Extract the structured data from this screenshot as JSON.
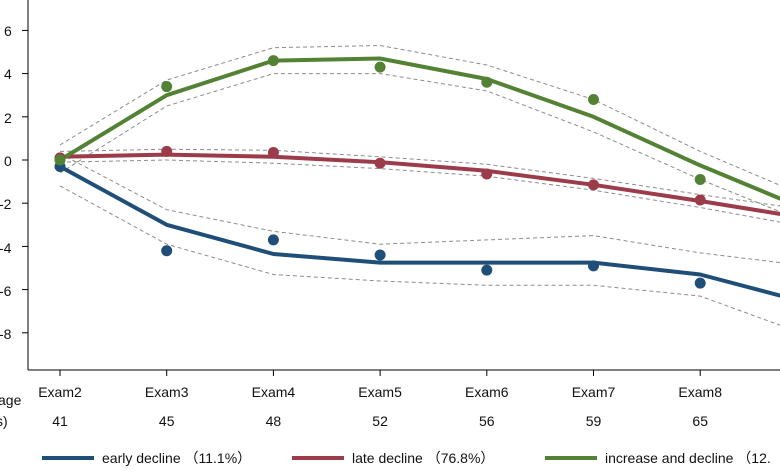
{
  "chart_data": {
    "type": "line",
    "y_ticks": [
      "6",
      "4",
      "2",
      "0",
      "-2",
      "-4",
      "-6",
      "-8"
    ],
    "ylim": [
      -9,
      7.2
    ],
    "categories": [
      "Exam2",
      "Exam3",
      "Exam4",
      "Exam5",
      "Exam6",
      "Exam7",
      "Exam8",
      "E"
    ],
    "age_row_label": "age",
    "age_row_label_2": "s)",
    "ages": [
      "41",
      "45",
      "48",
      "52",
      "56",
      "59",
      "65",
      ""
    ],
    "series": [
      {
        "name": "early decline",
        "legend_label": "early decline （11.1%）",
        "color": "#1f4e79",
        "observed": [
          -0.3,
          -4.2,
          -3.7,
          -4.4,
          -5.1,
          -4.9,
          -5.7
        ],
        "fitted": [
          -0.3,
          -3.0,
          -4.35,
          -4.75,
          -4.75,
          -4.75,
          -5.3,
          -6.6
        ],
        "ci_upper": [
          0.3,
          -2.3,
          -3.3,
          -3.9,
          -3.7,
          -3.5,
          -4.3,
          -4.9
        ],
        "ci_lower": [
          -1.2,
          -3.9,
          -5.3,
          -5.6,
          -5.8,
          -5.8,
          -6.3,
          -8.1
        ]
      },
      {
        "name": "late decline",
        "legend_label": "late decline （76.8%）",
        "color": "#9c3c4a",
        "observed": [
          0.1,
          0.4,
          0.35,
          -0.15,
          -0.65,
          -1.15,
          -1.85
        ],
        "fitted": [
          0.15,
          0.25,
          0.15,
          -0.1,
          -0.5,
          -1.15,
          -1.9,
          -2.7
        ],
        "ci_upper": [
          0.4,
          0.5,
          0.45,
          0.15,
          -0.2,
          -0.85,
          -1.6,
          -2.3
        ],
        "ci_lower": [
          -0.1,
          0.0,
          -0.15,
          -0.4,
          -0.75,
          -1.4,
          -2.2,
          -3.1
        ]
      },
      {
        "name": "increase and decline",
        "legend_label": "increase and decline （12.",
        "color": "#548235",
        "observed": [
          0.0,
          3.4,
          4.6,
          4.3,
          3.6,
          2.8,
          -0.9
        ],
        "fitted": [
          0.0,
          3.0,
          4.6,
          4.7,
          3.75,
          2.0,
          -0.25,
          -2.3
        ],
        "ci_upper": [
          0.7,
          3.7,
          5.2,
          5.3,
          4.4,
          2.8,
          0.4,
          -1.7
        ],
        "ci_lower": [
          -0.6,
          2.5,
          4.0,
          4.0,
          3.2,
          1.3,
          -0.9,
          -2.9
        ]
      }
    ]
  }
}
